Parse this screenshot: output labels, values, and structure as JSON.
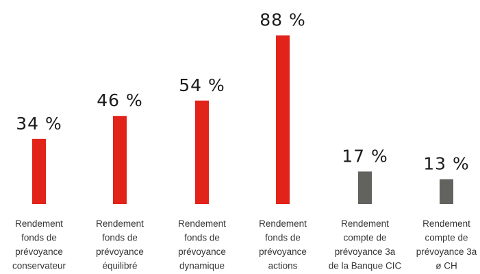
{
  "chart_data": {
    "type": "bar",
    "categories": [
      [
        "Rendement",
        "fonds de",
        "prévoyance",
        "conservateur"
      ],
      [
        "Rendement",
        "fonds de",
        "prévoyance",
        "équilibré"
      ],
      [
        "Rendement",
        "fonds de",
        "prévoyance",
        "dynamique"
      ],
      [
        "Rendement",
        "fonds de",
        "prévoyance",
        "actions"
      ],
      [
        "Rendement",
        "compte de",
        "prévoyance 3a",
        "de la Banque CIC"
      ],
      [
        "Rendement",
        "compte de",
        "prévoyance 3a",
        "ø CH"
      ]
    ],
    "values": [
      34,
      46,
      54,
      88,
      17,
      13
    ],
    "value_labels": [
      "34 %",
      "46 %",
      "54 %",
      "88 %",
      "17 %",
      "13 %"
    ],
    "colors": [
      "#e2231a",
      "#e2231a",
      "#e2231a",
      "#e2231a",
      "#62625f",
      "#62625f"
    ],
    "ylim": [
      0,
      100
    ],
    "grid": false,
    "title": "",
    "xlabel": "",
    "ylabel": ""
  }
}
